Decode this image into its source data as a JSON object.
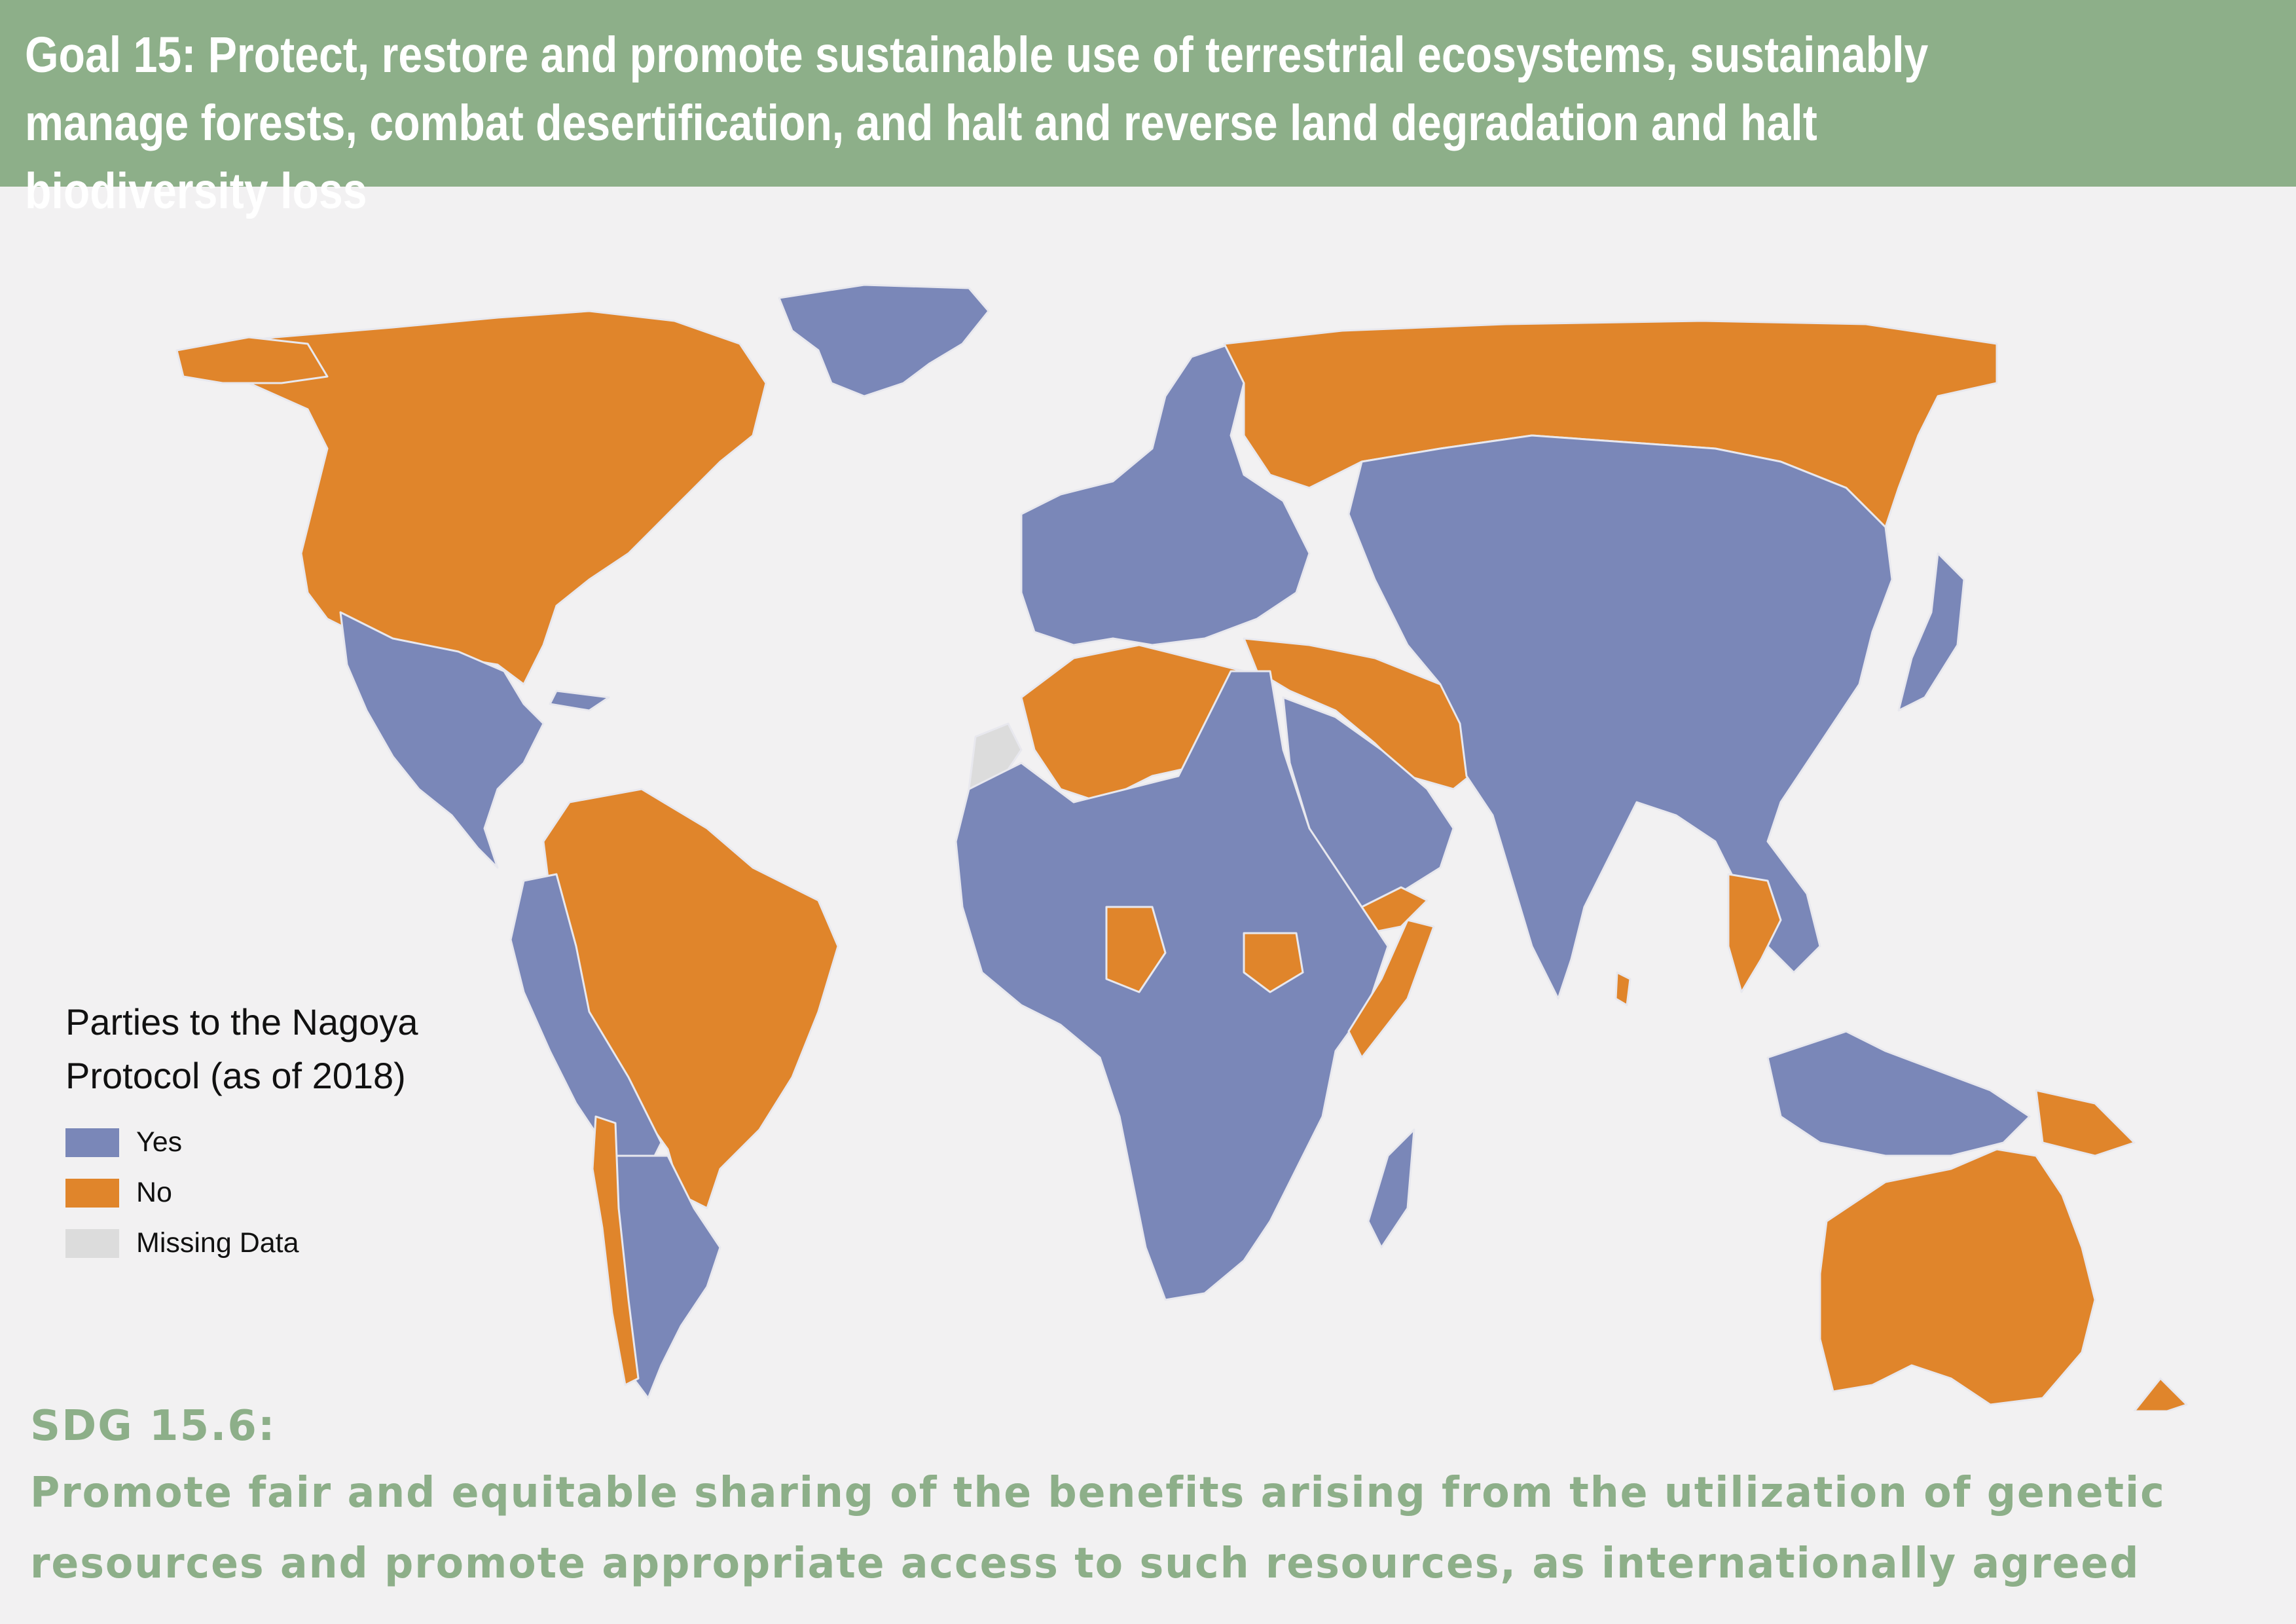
{
  "header": {
    "title": "Goal 15: Protect, restore and promote sustainable use of terrestrial ecosystems, sustainably manage forests, combat desertification, and halt and reverse land degradation and halt biodiversity loss",
    "background_color": "#8daf89"
  },
  "legend": {
    "title_line1": "Parties to the Nagoya",
    "title_line2": "Protocol (as of 2018)",
    "items": [
      {
        "label": "Yes",
        "color": "#7a87b8"
      },
      {
        "label": "No",
        "color": "#e0852b"
      },
      {
        "label": "Missing Data",
        "color": "#dcdcdc"
      }
    ]
  },
  "map": {
    "ocean_color": "#f2f1f2",
    "border_color": "#e8e8ee",
    "regions": [
      {
        "name": "north-america",
        "status": "No"
      },
      {
        "name": "greenland",
        "status": "Yes"
      },
      {
        "name": "mexico-central-america",
        "status": "Yes"
      },
      {
        "name": "south-america-north",
        "status": "No"
      },
      {
        "name": "south-america-west",
        "status": "Yes"
      },
      {
        "name": "south-america-south",
        "status": "Yes"
      },
      {
        "name": "europe",
        "status": "Yes"
      },
      {
        "name": "russia",
        "status": "No"
      },
      {
        "name": "north-africa",
        "status": "No"
      },
      {
        "name": "sub-saharan-africa",
        "status": "Yes"
      },
      {
        "name": "middle-east",
        "status": "Yes"
      },
      {
        "name": "iran-iraq",
        "status": "No"
      },
      {
        "name": "asia",
        "status": "Yes"
      },
      {
        "name": "australia",
        "status": "No"
      },
      {
        "name": "new-zealand",
        "status": "No"
      },
      {
        "name": "western-sahara",
        "status": "Missing"
      }
    ]
  },
  "footer": {
    "heading": "SDG 15.6:",
    "line1": "Promote fair and equitable sharing of the benefits arising from the utilization of genetic",
    "line2": "resources and promote appropriate access to such resources, as internationally agreed",
    "text_color": "#8daf89"
  }
}
